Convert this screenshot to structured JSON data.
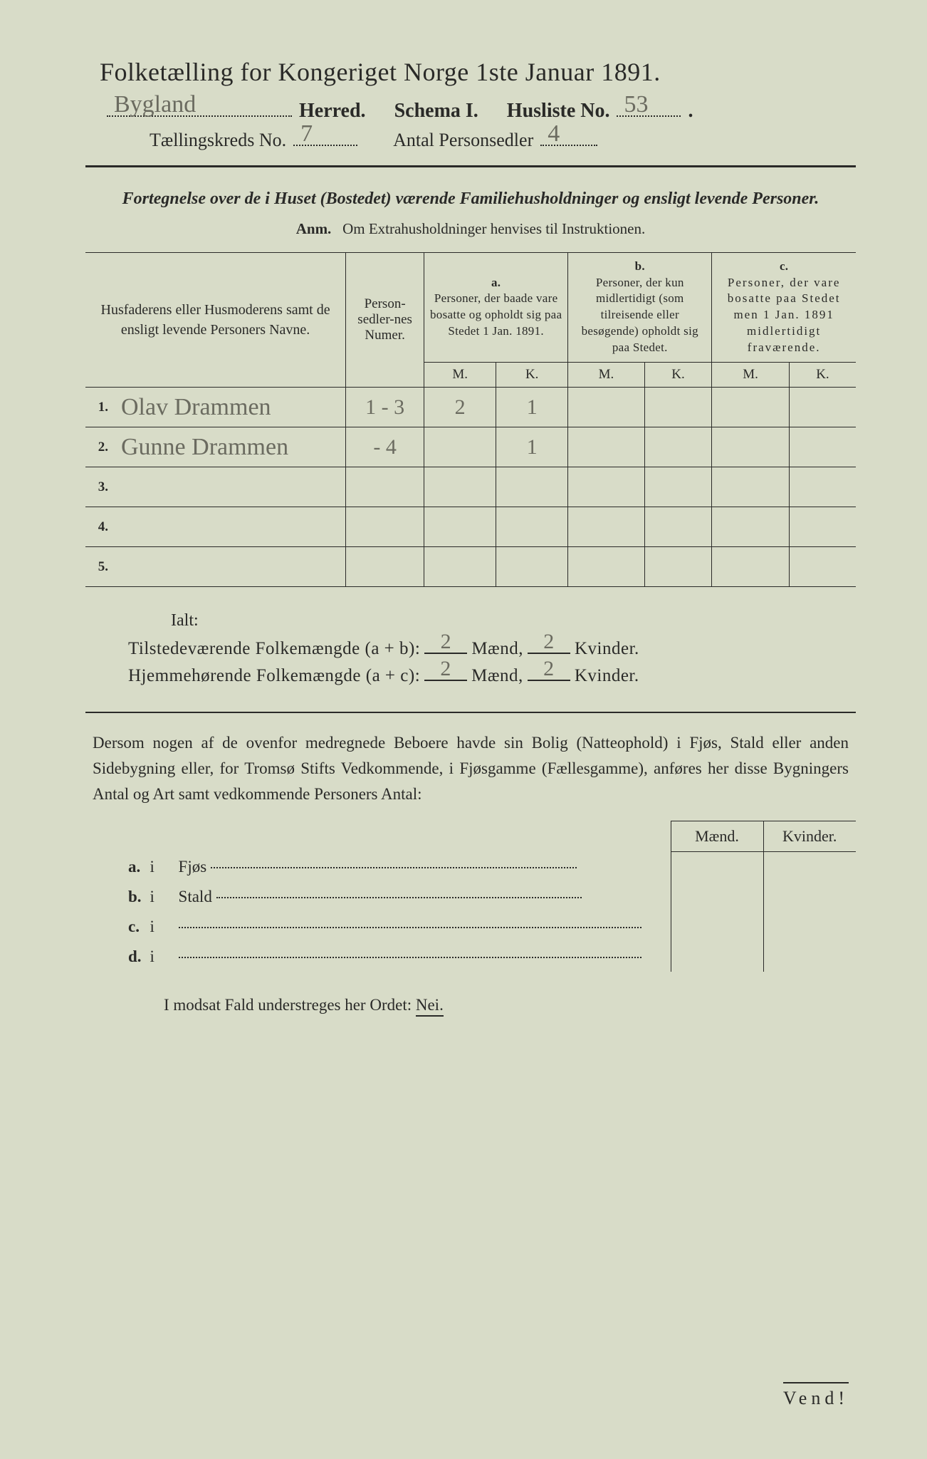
{
  "colors": {
    "paper": "#d8dcc8",
    "ink": "#2a2a28",
    "handwriting": "#6b6b60"
  },
  "typography": {
    "title_fontsize": 36,
    "body_fontsize": 23,
    "table_header_fontsize": 19,
    "hand_fontsize": 34
  },
  "header": {
    "title": "Folketælling for Kongeriget Norge 1ste Januar 1891.",
    "herred_value": "Bygland",
    "herred_label": "Herred.",
    "schema_label": "Schema I.",
    "husliste_label": "Husliste No.",
    "husliste_value": "53",
    "kreds_label": "Tællingskreds No.",
    "kreds_value": "7",
    "antal_label": "Antal Personsedler",
    "antal_value": "4"
  },
  "subtitle": "Fortegnelse over de i Huset (Bostedet) værende Familiehusholdninger og ensligt levende Personer.",
  "anm_label": "Anm.",
  "anm_text": "Om Extrahusholdninger henvises til Instruktionen.",
  "table": {
    "col_names": "Husfaderens eller Husmoderens samt de ensligt levende Personers Navne.",
    "col_numer": "Person-sedler-nes Numer.",
    "col_a_label": "a.",
    "col_a_text": "Personer, der baade vare bosatte og opholdt sig paa Stedet 1 Jan. 1891.",
    "col_b_label": "b.",
    "col_b_text": "Personer, der kun midlertidigt (som tilreisende eller besøgende) opholdt sig paa Stedet.",
    "col_c_label": "c.",
    "col_c_text": "Personer, der vare bosatte paa Stedet men 1 Jan. 1891 midlertidigt fraværende.",
    "m": "M.",
    "k": "K.",
    "rows": [
      {
        "num": "1.",
        "name": "Olav Drammen",
        "sedler": "1 - 3",
        "a_m": "2",
        "a_k": "1",
        "b_m": "",
        "b_k": "",
        "c_m": "",
        "c_k": ""
      },
      {
        "num": "2.",
        "name": "Gunne Drammen",
        "sedler": "- 4",
        "a_m": "",
        "a_k": "1",
        "b_m": "",
        "b_k": "",
        "c_m": "",
        "c_k": ""
      },
      {
        "num": "3.",
        "name": "",
        "sedler": "",
        "a_m": "",
        "a_k": "",
        "b_m": "",
        "b_k": "",
        "c_m": "",
        "c_k": ""
      },
      {
        "num": "4.",
        "name": "",
        "sedler": "",
        "a_m": "",
        "a_k": "",
        "b_m": "",
        "b_k": "",
        "c_m": "",
        "c_k": ""
      },
      {
        "num": "5.",
        "name": "",
        "sedler": "",
        "a_m": "",
        "a_k": "",
        "b_m": "",
        "b_k": "",
        "c_m": "",
        "c_k": ""
      }
    ]
  },
  "totals": {
    "ialt": "Ialt:",
    "present_label": "Tilstedeværende Folkemængde (a + b):",
    "resident_label": "Hjemmehørende Folkemængde (a + c):",
    "maend": "Mænd,",
    "kvinder": "Kvinder.",
    "present_m": "2",
    "present_k": "2",
    "resident_m": "2",
    "resident_k": "2"
  },
  "para": "Dersom nogen af de ovenfor medregnede Beboere havde sin Bolig (Natteophold) i Fjøs, Stald eller anden Sidebygning eller, for Tromsø Stifts Vedkommende, i Fjøsgamme (Fællesgamme), anføres her disse Bygningers Antal og Art samt vedkommende Personers Antal:",
  "subtable": {
    "maend": "Mænd.",
    "kvinder": "Kvinder.",
    "rows": [
      {
        "lab": "a.",
        "i": "i",
        "item": "Fjøs"
      },
      {
        "lab": "b.",
        "i": "i",
        "item": "Stald"
      },
      {
        "lab": "c.",
        "i": "i",
        "item": ""
      },
      {
        "lab": "d.",
        "i": "i",
        "item": ""
      }
    ]
  },
  "nei_line_prefix": "I modsat Fald understreges her Ordet:",
  "nei_word": "Nei.",
  "vend": "Vend!"
}
